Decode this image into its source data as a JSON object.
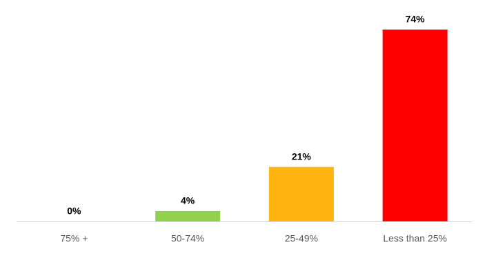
{
  "chart_data": {
    "type": "bar",
    "categories": [
      "75% +",
      "50-74%",
      "25-49%",
      "Less than 25%"
    ],
    "values": [
      0,
      4,
      21,
      74
    ],
    "value_labels": [
      "0%",
      "4%",
      "21%",
      "74%"
    ],
    "colors": [
      "#92d050",
      "#92d050",
      "#ffb511",
      "#ff0000"
    ]
  }
}
